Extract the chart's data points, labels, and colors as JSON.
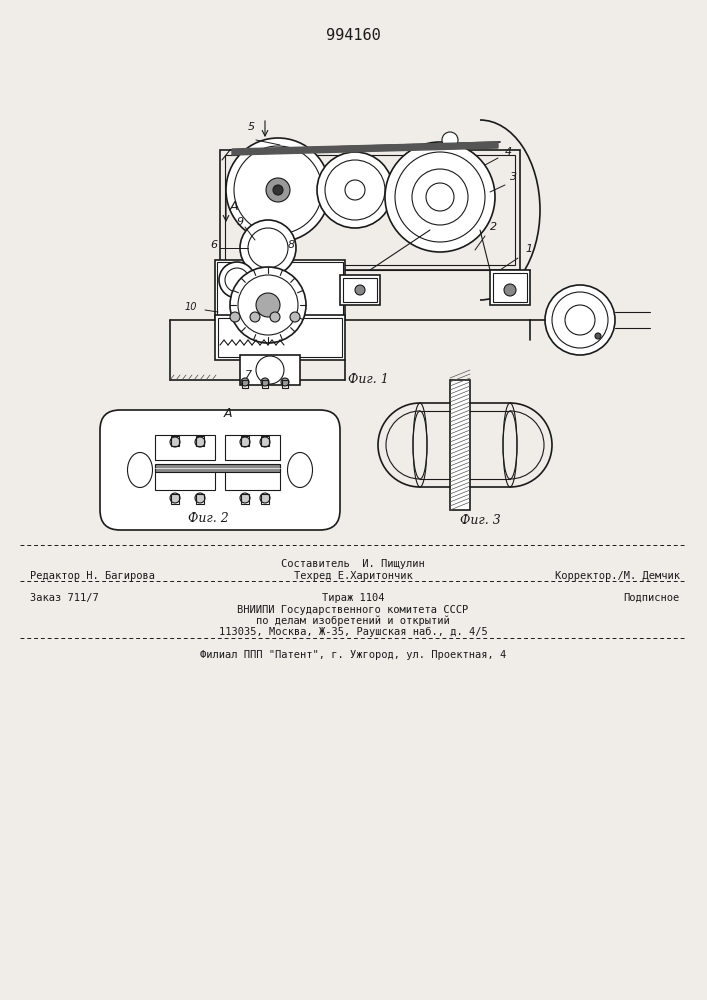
{
  "patent_number": "994160",
  "fig1_caption": "Фиг. 1",
  "fig2_caption": "Фиг. 2",
  "fig3_caption": "Фиг. 3",
  "label_A": "A",
  "bg_color": "#f0ede8",
  "line_color": "#1a1a1a",
  "text_rows": [
    {
      "left": "Редактор Н. Багирова",
      "center": "Составитель И. Пищулин",
      "right": ""
    },
    {
      "left": "",
      "center": "Техред Е.Харитончик",
      "right": "Корректор./М. Демчик"
    },
    {
      "left": "Заказ 711/7",
      "center": "Тираж 1104",
      "right": "Подписное"
    },
    {
      "left": "",
      "center": "ВНИИПИ Государственного комитета СССР",
      "right": ""
    },
    {
      "left": "",
      "center": "по делам изобретений и открытий",
      "right": ""
    },
    {
      "left": "",
      "center": "113035, Москва, Ж-35, Раушская наб., д. 4/5",
      "right": ""
    },
    {
      "left": "",
      "center": "Филиал ППП \"Патент\", г. Ужгород, ул. Проектная, 4",
      "right": ""
    }
  ]
}
